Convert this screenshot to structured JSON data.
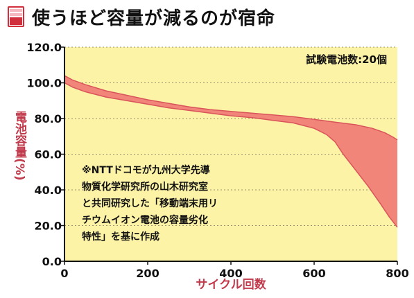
{
  "title": "使うほど容量が減るのが宿命",
  "colors": {
    "plot_bg": "#fdf3a6",
    "band_fill": "#f2857a",
    "band_stroke": "#d9545a",
    "axis_label": "#c0394b",
    "icon_red": "#d22f3c"
  },
  "chart_data": {
    "type": "area",
    "xlabel": "サイクル回数",
    "ylabel": "電池容量(%)",
    "xlim": [
      0,
      800
    ],
    "ylim": [
      0,
      120
    ],
    "xticks": [
      {
        "value": 0,
        "label": "0"
      },
      {
        "value": 200,
        "label": "200"
      },
      {
        "value": 400,
        "label": "400"
      },
      {
        "value": 600,
        "label": "600"
      },
      {
        "value": 800,
        "label": "800"
      }
    ],
    "yticks": [
      {
        "value": 0,
        "label": "0.0"
      },
      {
        "value": 20,
        "label": "20.0"
      },
      {
        "value": 40,
        "label": "40.0"
      },
      {
        "value": 60,
        "label": "60.0"
      },
      {
        "value": 80,
        "label": "80.0"
      },
      {
        "value": 100,
        "label": "100.0"
      },
      {
        "value": 120,
        "label": "120.0"
      }
    ],
    "series": [
      {
        "name": "",
        "x": [
          0,
          20,
          50,
          100,
          150,
          200,
          250,
          300,
          350,
          400,
          450,
          500,
          550,
          600,
          650,
          700,
          740,
          770,
          790,
          800
        ],
        "y": [
          104,
          101.5,
          99,
          95.5,
          93,
          90.5,
          88.5,
          86.5,
          85,
          84,
          83,
          82,
          81,
          79.5,
          78,
          76.5,
          74.5,
          72,
          69.5,
          68
        ]
      },
      {
        "name": "",
        "x": [
          0,
          20,
          50,
          100,
          150,
          200,
          250,
          300,
          350,
          400,
          450,
          500,
          550,
          600,
          630,
          650,
          670,
          700,
          730,
          760,
          780,
          800
        ],
        "y": [
          100,
          97.5,
          95,
          92,
          90,
          88,
          86,
          84.5,
          83,
          81.5,
          80.5,
          79,
          77.5,
          74.5,
          71,
          67,
          60,
          51,
          42,
          32,
          25,
          19
        ]
      }
    ],
    "annotations": [
      {
        "id": "count",
        "lines": [
          "試験電池数:20個"
        ]
      },
      {
        "id": "source",
        "lines": [
          "※NTTドコモが九州大学先導",
          "物質化学研究所の山木研究室",
          "と共同研究した「移動端末用リ",
          "チウムイオン電池の容量劣化",
          "特性」を基に作成"
        ]
      }
    ]
  }
}
